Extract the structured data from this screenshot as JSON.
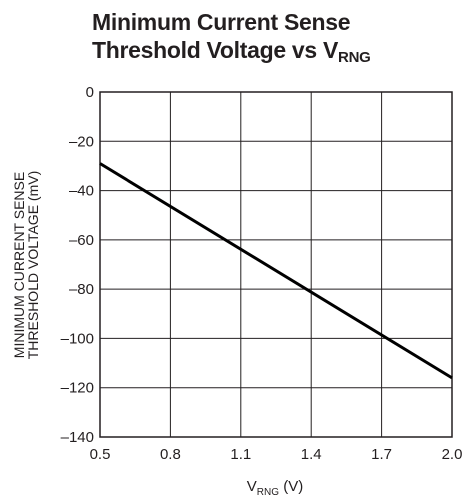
{
  "title": {
    "line1": "Minimum Current Sense",
    "line2_main": "Threshold Voltage vs V",
    "line2_sub": "RNG"
  },
  "chart_data": {
    "type": "line",
    "title": "Minimum Current Sense Threshold Voltage vs VRNG",
    "xlabel_main": "V",
    "xlabel_sub": "RNG",
    "xlabel_unit": " (V)",
    "ylabel_line1": "MINIMUM CURRENT SENSE",
    "ylabel_line2": "THRESHOLD VOLTAGE (mV)",
    "xlim": [
      0.5,
      2.0
    ],
    "ylim": [
      -140,
      0
    ],
    "xticks": [
      0.5,
      0.8,
      1.1,
      1.4,
      1.7,
      2.0
    ],
    "xtick_labels": [
      "0.5",
      "0.8",
      "1.1",
      "1.4",
      "1.7",
      "2.0"
    ],
    "yticks": [
      0,
      -20,
      -40,
      -60,
      -80,
      -100,
      -120,
      -140
    ],
    "ytick_labels": [
      "0",
      "–20",
      "–40",
      "–60",
      "–80",
      "–100",
      "–120",
      "–140"
    ],
    "grid": true,
    "series": [
      {
        "x": [
          0.5,
          2.0
        ],
        "y": [
          -29,
          -116
        ]
      }
    ],
    "line_color": "#000000"
  }
}
